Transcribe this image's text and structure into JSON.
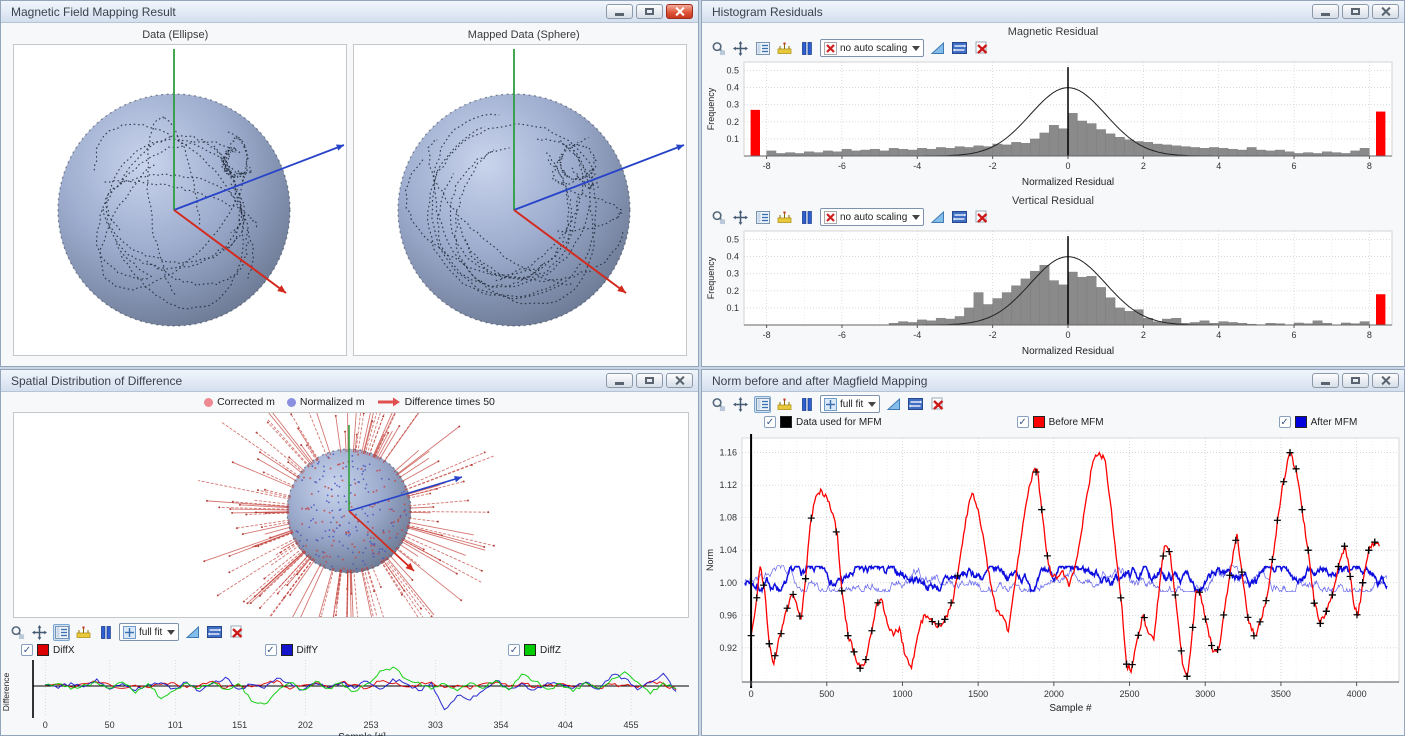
{
  "colors": {
    "accent_red": "#ff0000",
    "hist_bar": "#8a8a8a",
    "gauss_line": "#222222",
    "axis_green": "#2f9e3f",
    "axis_blue": "#2744c9",
    "axis_red": "#d42a1e",
    "legend_corrected": "#ee8890",
    "legend_normalized": "#8a8fe0",
    "legend_diff_arrow": "#e05050",
    "diffx": "#dd0000",
    "diffy": "#1515cc",
    "diffz": "#00cc00",
    "norm_data": "#000000",
    "norm_before": "#ff0000",
    "norm_after": "#0000dd"
  },
  "windows": {
    "mapping": {
      "title": "Magnetic Field Mapping Result",
      "subplot_titles": [
        "Data (Ellipse)",
        "Mapped Data (Sphere)"
      ]
    },
    "histograms": {
      "title": "Histogram Residuals",
      "sections": [
        {
          "title": "Magnetic Residual",
          "dropdown": "no auto scaling"
        },
        {
          "title": "Vertical Residual",
          "dropdown": "no auto scaling"
        }
      ]
    },
    "spatial": {
      "title": "Spatial Distribution of Difference",
      "legend": [
        {
          "label": "Corrected m"
        },
        {
          "label": "Normalized m"
        },
        {
          "label": "Difference times 50"
        }
      ],
      "dropdown": "full fit",
      "checkboxes": [
        {
          "label": "DiffX",
          "color": "#dd0000",
          "checked": true
        },
        {
          "label": "DiffY",
          "color": "#1515cc",
          "checked": true
        },
        {
          "label": "DiffZ",
          "color": "#00cc00",
          "checked": true
        }
      ]
    },
    "norm": {
      "title": "Norm before and after Magfield Mapping",
      "dropdown": "full fit",
      "checkboxes": [
        {
          "label": "Data used for MFM",
          "color": "#000000",
          "checked": true
        },
        {
          "label": "Before MFM",
          "color": "#ff0000",
          "checked": true
        },
        {
          "label": "After MFM",
          "color": "#0000dd",
          "checked": true
        }
      ]
    }
  },
  "spheres": {
    "data_ellipse": {
      "trail_count": 12,
      "seed": 3
    },
    "mapped_sphere": {
      "trail_count": 12,
      "seed": 4
    },
    "spiky": {
      "spike_count": 150,
      "surface_red_dots": 90,
      "surface_blue_dots": 130,
      "seed": 5
    }
  },
  "chart_data": [
    {
      "id": "magnetic_residual",
      "type": "bar",
      "title": "Magnetic Residual",
      "xlabel": "Normalized Residual",
      "ylabel": "Frequency",
      "xlim": [
        -8.6,
        8.6
      ],
      "ylim": [
        0,
        0.55
      ],
      "xticks": [
        -8,
        -6,
        -4,
        -2,
        0,
        2,
        4,
        6,
        8
      ],
      "yticks": [
        0.1,
        0.2,
        0.3,
        0.4,
        0.5
      ],
      "bin_start": -8,
      "bin_width": 0.25,
      "values": [
        0.03,
        0.015,
        0.02,
        0.015,
        0.025,
        0.02,
        0.03,
        0.025,
        0.04,
        0.03,
        0.035,
        0.04,
        0.03,
        0.045,
        0.04,
        0.035,
        0.045,
        0.04,
        0.05,
        0.045,
        0.055,
        0.05,
        0.06,
        0.055,
        0.07,
        0.065,
        0.08,
        0.075,
        0.1,
        0.135,
        0.18,
        0.16,
        0.25,
        0.205,
        0.19,
        0.155,
        0.13,
        0.11,
        0.095,
        0.085,
        0.08,
        0.07,
        0.065,
        0.06,
        0.055,
        0.05,
        0.045,
        0.05,
        0.045,
        0.04,
        0.035,
        0.05,
        0.035,
        0.03,
        0.035,
        0.025,
        0.015,
        0.02,
        0.015,
        0.025,
        0.02,
        0.015,
        0.03,
        0.045
      ],
      "clip_bars": [
        {
          "x": -8.3,
          "value": 0.27
        },
        {
          "x": 8.3,
          "value": 0.26
        }
      ],
      "gauss": {
        "mean": 0,
        "sigma": 1,
        "peak": 0.4
      }
    },
    {
      "id": "vertical_residual",
      "type": "bar",
      "title": "Vertical Residual",
      "xlabel": "Normalized Residual",
      "ylabel": "Frequency",
      "xlim": [
        -8.6,
        8.6
      ],
      "ylim": [
        0,
        0.55
      ],
      "xticks": [
        -8,
        -6,
        -4,
        -2,
        0,
        2,
        4,
        6,
        8
      ],
      "yticks": [
        0.1,
        0.2,
        0.3,
        0.4,
        0.5
      ],
      "bin_start": -8,
      "bin_width": 0.25,
      "values": [
        0,
        0,
        0,
        0,
        0,
        0,
        0,
        0,
        0,
        0,
        0,
        0,
        0,
        0.01,
        0.02,
        0.015,
        0.03,
        0.025,
        0.04,
        0.035,
        0.05,
        0.1,
        0.19,
        0.12,
        0.155,
        0.19,
        0.23,
        0.27,
        0.315,
        0.35,
        0.26,
        0.235,
        0.31,
        0.28,
        0.285,
        0.22,
        0.16,
        0.1,
        0.08,
        0.09,
        0.04,
        0.02,
        0.035,
        0.04,
        0.01,
        0.015,
        0.025,
        0.01,
        0.02,
        0.015,
        0.01,
        0.005,
        0,
        0.01,
        0.008,
        0,
        0.012,
        0.008,
        0.025,
        0.01,
        0,
        0.012,
        0.008,
        0.02
      ],
      "clip_bars": [
        {
          "x": 8.3,
          "value": 0.18
        }
      ],
      "gauss": {
        "mean": 0,
        "sigma": 1,
        "peak": 0.4
      }
    },
    {
      "id": "difference",
      "type": "line",
      "xlabel": "Sample [#]",
      "ylabel": "Difference",
      "xlim": [
        -8,
        500
      ],
      "ylim": [
        -3.3,
        3.3
      ],
      "xticks": [
        0,
        50,
        101,
        151,
        202,
        253,
        303,
        354,
        404,
        455
      ],
      "x_step": 10,
      "series": [
        {
          "name": "DiffX",
          "color": "#dd0000",
          "values": [
            0.1,
            0.2,
            -0.1,
            0.3,
            0.5,
            0.2,
            -0.3,
            0.1,
            -0.2,
            0.2,
            0.4,
            -0.2,
            0.1,
            0.6,
            -0.3,
            0.2,
            -0.1,
            0.3,
            0.7,
            -0.4,
            0.1,
            0.4,
            -0.2,
            0.5,
            0.2,
            -0.3,
            0.6,
            0.3,
            -0.1,
            0.2,
            0.5,
            -0.2,
            0.1,
            -0.4,
            0.3,
            0.5,
            -0.1,
            0.4,
            -0.2,
            0.1,
            0.3,
            -0.1,
            0.5,
            -0.3,
            0.2,
            0.1,
            -0.2,
            0.6,
            0.3,
            -0.5
          ]
        },
        {
          "name": "DiffY",
          "color": "#1515cc",
          "values": [
            0.2,
            -0.3,
            0.4,
            -0.1,
            0.9,
            -0.4,
            0.3,
            -0.6,
            0.2,
            0.4,
            -0.3,
            0.5,
            -0.7,
            0.3,
            1.1,
            -0.4,
            0.2,
            -0.3,
            1.0,
            0.4,
            -0.5,
            0.3,
            -0.2,
            0.4,
            -0.3,
            0.6,
            -0.4,
            0.9,
            0.3,
            -0.6,
            0.4,
            -3.0,
            -1.2,
            -1.8,
            -0.6,
            0.7,
            -0.4,
            0.3,
            -0.5,
            0.4,
            0.2,
            -0.3,
            0.5,
            -0.4,
            1.4,
            1.0,
            -0.5,
            0.4,
            1.6,
            -0.7
          ]
        },
        {
          "name": "DiffZ",
          "color": "#00cc00",
          "values": [
            0.1,
            0.3,
            -0.4,
            0.2,
            0.4,
            -0.3,
            0.5,
            -0.9,
            0.3,
            -1.6,
            -0.6,
            0.4,
            -0.3,
            0.5,
            -0.4,
            0.3,
            -1.9,
            -2.3,
            -0.7,
            0.4,
            -0.5,
            0.6,
            -0.3,
            0.4,
            -0.7,
            0.3,
            1.9,
            2.4,
            0.9,
            0.5,
            -0.4,
            0.3,
            -0.6,
            0.4,
            -0.3,
            0.7,
            -0.5,
            1.5,
            0.6,
            -0.4,
            0.3,
            -0.7,
            0.4,
            -0.3,
            0.9,
            1.8,
            0.5,
            -1.0,
            0.4,
            -0.3
          ]
        }
      ]
    },
    {
      "id": "norm",
      "type": "line",
      "xlabel": "Sample #",
      "ylabel": "Norm",
      "xlim": [
        -60,
        4280
      ],
      "ylim": [
        0.878,
        1.178
      ],
      "xticks": [
        0,
        500,
        1000,
        1500,
        2000,
        2500,
        3000,
        3500,
        4000
      ],
      "yticks": [
        0.92,
        0.96,
        1.0,
        1.04,
        1.08,
        1.12,
        1.16
      ],
      "series": [
        {
          "name": "Before MFM",
          "color": "#ff0000",
          "points": [
            [
              0,
              0.935
            ],
            [
              30,
              0.97
            ],
            [
              60,
              1.02
            ],
            [
              90,
              0.99
            ],
            [
              120,
              0.925
            ],
            [
              150,
              0.9
            ],
            [
              190,
              0.935
            ],
            [
              230,
              0.965
            ],
            [
              270,
              0.985
            ],
            [
              300,
              0.975
            ],
            [
              330,
              0.955
            ],
            [
              360,
              1.005
            ],
            [
              390,
              1.07
            ],
            [
              420,
              1.1
            ],
            [
              460,
              1.115
            ],
            [
              500,
              1.105
            ],
            [
              540,
              1.085
            ],
            [
              570,
              1.06
            ],
            [
              600,
              0.99
            ],
            [
              640,
              0.935
            ],
            [
              680,
              0.915
            ],
            [
              720,
              0.895
            ],
            [
              750,
              0.9
            ],
            [
              790,
              0.935
            ],
            [
              830,
              0.975
            ],
            [
              860,
              0.98
            ],
            [
              900,
              0.95
            ],
            [
              940,
              0.935
            ],
            [
              980,
              0.945
            ],
            [
              1020,
              0.91
            ],
            [
              1060,
              0.895
            ],
            [
              1100,
              0.935
            ],
            [
              1140,
              0.96
            ],
            [
              1180,
              0.955
            ],
            [
              1230,
              0.945
            ],
            [
              1280,
              0.955
            ],
            [
              1330,
              0.975
            ],
            [
              1380,
              1.03
            ],
            [
              1420,
              1.08
            ],
            [
              1460,
              1.11
            ],
            [
              1500,
              1.09
            ],
            [
              1540,
              1.05
            ],
            [
              1580,
              1.0
            ],
            [
              1620,
              0.965
            ],
            [
              1660,
              0.96
            ],
            [
              1700,
              0.94
            ],
            [
              1740,
              0.995
            ],
            [
              1780,
              1.05
            ],
            [
              1820,
              1.1
            ],
            [
              1860,
              1.135
            ],
            [
              1890,
              1.14
            ],
            [
              1920,
              1.09
            ],
            [
              1950,
              1.04
            ],
            [
              1980,
              1.01
            ],
            [
              2020,
              1.005
            ],
            [
              2060,
              1.015
            ],
            [
              2100,
              0.995
            ],
            [
              2140,
              1.02
            ],
            [
              2180,
              1.06
            ],
            [
              2220,
              1.11
            ],
            [
              2260,
              1.15
            ],
            [
              2300,
              1.16
            ],
            [
              2340,
              1.15
            ],
            [
              2380,
              1.09
            ],
            [
              2420,
              1.02
            ],
            [
              2450,
              0.97
            ],
            [
              2480,
              0.9
            ],
            [
              2510,
              0.89
            ],
            [
              2550,
              0.93
            ],
            [
              2590,
              0.96
            ],
            [
              2620,
              0.94
            ],
            [
              2660,
              0.93
            ],
            [
              2700,
              1.0
            ],
            [
              2730,
              1.045
            ],
            [
              2770,
              1.035
            ],
            [
              2810,
              0.97
            ],
            [
              2850,
              0.9
            ],
            [
              2880,
              0.885
            ],
            [
              2910,
              0.93
            ],
            [
              2940,
              0.99
            ],
            [
              2970,
              0.985
            ],
            [
              3010,
              0.95
            ],
            [
              3050,
              0.915
            ],
            [
              3090,
              0.92
            ],
            [
              3130,
              0.97
            ],
            [
              3170,
              1.02
            ],
            [
              3210,
              1.06
            ],
            [
              3250,
              1.0
            ],
            [
              3290,
              0.95
            ],
            [
              3330,
              0.935
            ],
            [
              3370,
              0.955
            ],
            [
              3410,
              0.985
            ],
            [
              3460,
              1.05
            ],
            [
              3510,
              1.12
            ],
            [
              3560,
              1.16
            ],
            [
              3600,
              1.14
            ],
            [
              3640,
              1.09
            ],
            [
              3680,
              1.04
            ],
            [
              3720,
              0.975
            ],
            [
              3760,
              0.95
            ],
            [
              3800,
              0.965
            ],
            [
              3840,
              0.985
            ],
            [
              3880,
              1.02
            ],
            [
              3920,
              1.045
            ],
            [
              3950,
              1.02
            ],
            [
              3980,
              0.975
            ],
            [
              4010,
              0.96
            ],
            [
              4040,
              1.0
            ],
            [
              4080,
              1.04
            ],
            [
              4120,
              1.05
            ],
            [
              4150,
              1.045
            ]
          ]
        },
        {
          "name": "After MFM",
          "color": "#0000dd",
          "base": 1.004,
          "noise": 0.012,
          "seed": 7
        },
        {
          "name": "Data used for MFM",
          "color": "#000000",
          "marker": "plus",
          "stride": 40
        }
      ]
    }
  ]
}
